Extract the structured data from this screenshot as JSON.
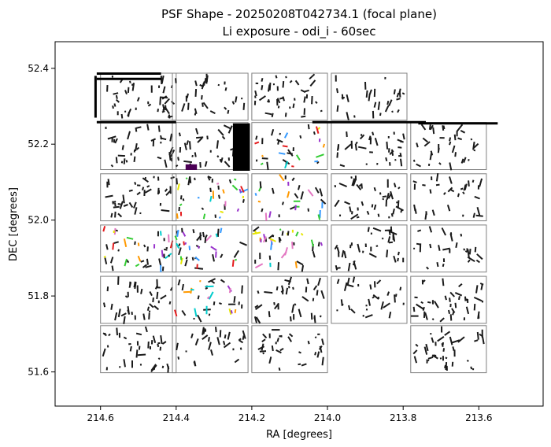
{
  "chart_data": {
    "type": "scatter",
    "title": "PSF Shape - 20250208T042734.1 (focal plane)",
    "subtitle": "Li exposure - odi_i - 60sec",
    "xlabel": "RA [degrees]",
    "ylabel": "DEC [degrees]",
    "xlim": [
      214.72,
      213.43
    ],
    "ylim": [
      51.51,
      52.47
    ],
    "xticks": [
      214.6,
      214.4,
      214.2,
      214.0,
      213.8,
      213.6
    ],
    "xtick_labels": [
      "214.6",
      "214.4",
      "214.2",
      "214.0",
      "213.8",
      "213.6"
    ],
    "yticks": [
      51.6,
      51.8,
      52.0,
      52.2,
      52.4
    ],
    "ytick_labels": [
      "51.6",
      "51.8",
      "52.0",
      "52.2",
      "52.4"
    ],
    "grid": false,
    "cell_ra_centers": [
      214.5,
      214.31,
      214.1,
      213.89,
      213.68
    ],
    "cell_dec_centers": [
      52.325,
      52.195,
      52.06,
      51.925,
      51.79,
      51.66
    ],
    "cell_half_width_ra": 0.1,
    "cell_half_height_dec": 0.062,
    "empty_cells": [
      [
        0,
        4
      ],
      [
        5,
        3
      ]
    ],
    "colored_cells": [
      [
        1,
        2
      ],
      [
        2,
        1
      ],
      [
        2,
        2
      ],
      [
        3,
        0
      ],
      [
        3,
        1
      ],
      [
        3,
        2
      ],
      [
        4,
        1
      ]
    ],
    "highlight_colors": [
      "#e41a1c",
      "#33cc33",
      "#3399ff",
      "#9933cc",
      "#ff9900",
      "#e6e600",
      "#e377c2",
      "#00cccc"
    ],
    "whisker_color": "#1a1a1a",
    "frame_color": "#808080",
    "dense_streaks": [
      {
        "ra": [
          214.61,
          214.44
        ],
        "dec": [
          52.386,
          52.386
        ],
        "color": "#000000"
      },
      {
        "ra": [
          214.61,
          214.44
        ],
        "dec": [
          52.372,
          52.372
        ],
        "color": "#000000"
      },
      {
        "ra": [
          214.61,
          214.4
        ],
        "dec": [
          52.258,
          52.258
        ],
        "color": "#000000"
      },
      {
        "ra": [
          214.04,
          213.74
        ],
        "dec": [
          52.258,
          52.258
        ],
        "color": "#000000"
      },
      {
        "ra": [
          213.76,
          213.55
        ],
        "dec": [
          52.255,
          52.255
        ],
        "color": "#000000"
      },
      {
        "ra": [
          214.613,
          214.613
        ],
        "dec": [
          52.38,
          52.27
        ],
        "color": "#000000"
      }
    ],
    "dense_blocks": [
      {
        "ra": [
          214.25,
          214.205
        ],
        "dec": [
          52.255,
          52.13
        ],
        "color": "#000000"
      },
      {
        "ra": [
          214.375,
          214.345
        ],
        "dec": [
          52.147,
          52.132
        ],
        "color": "#4b0055"
      }
    ]
  }
}
